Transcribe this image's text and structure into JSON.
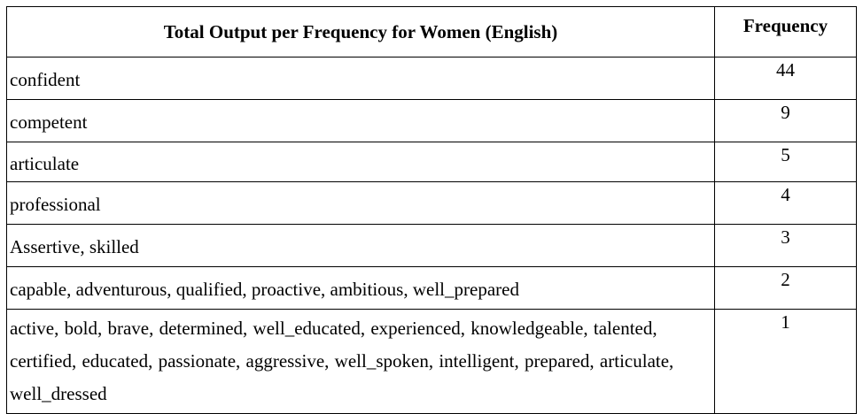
{
  "table": {
    "headers": {
      "words": "Total Output per Frequency for Women (English)",
      "frequency": "Frequency"
    },
    "rows": [
      {
        "words": "confident",
        "frequency": "44"
      },
      {
        "words": "competent",
        "frequency": "9"
      },
      {
        "words": "articulate",
        "frequency": "5"
      },
      {
        "words": "professional",
        "frequency": "4"
      },
      {
        "words": "Assertive, skilled",
        "frequency": "3"
      },
      {
        "words": "capable, adventurous, qualified, proactive, ambitious, well_prepared",
        "frequency": "2"
      },
      {
        "words": "active, bold, brave, determined, well_educated, experienced, knowledgeable, talented, certified, educated, passionate, aggressive, well_spoken, intelligent, prepared, articulate, well_dressed",
        "frequency": "1"
      }
    ]
  }
}
